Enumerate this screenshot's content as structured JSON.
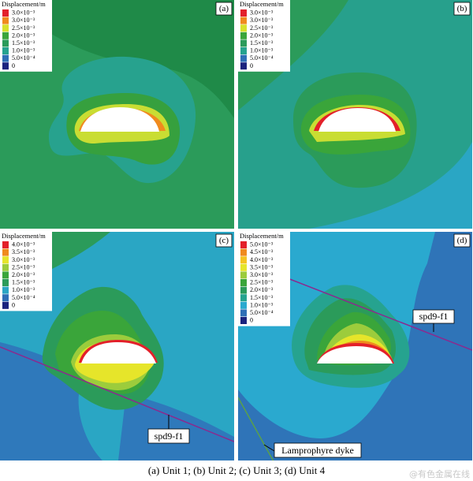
{
  "panels": [
    {
      "label": "(a)",
      "legend_title": "Displacement/m",
      "legend": [
        {
          "label": "3.0×10⁻³",
          "color": "#e3202a"
        },
        {
          "label": "3.0×10⁻³",
          "color": "#f08a1e"
        },
        {
          "label": "2.5×10⁻³",
          "color": "#d8e12b"
        },
        {
          "label": "2.0×10⁻³",
          "color": "#3aa53a"
        },
        {
          "label": "1.5×10⁻³",
          "color": "#2b9b5a"
        },
        {
          "label": "1.0×10⁻³",
          "color": "#26a38f"
        },
        {
          "label": "5.0×10⁻⁴",
          "color": "#2f6fb6"
        },
        {
          "label": "0",
          "color": "#1a237e"
        }
      ]
    },
    {
      "label": "(b)",
      "legend_title": "Displacement/m",
      "legend": [
        {
          "label": "3.0×10⁻³",
          "color": "#e3202a"
        },
        {
          "label": "3.0×10⁻³",
          "color": "#f08a1e"
        },
        {
          "label": "2.5×10⁻³",
          "color": "#d8e12b"
        },
        {
          "label": "2.0×10⁻³",
          "color": "#3aa53a"
        },
        {
          "label": "1.5×10⁻³",
          "color": "#2b9b5a"
        },
        {
          "label": "1.0×10⁻³",
          "color": "#26a38f"
        },
        {
          "label": "5.0×10⁻⁴",
          "color": "#2f6fb6"
        },
        {
          "label": "0",
          "color": "#1a237e"
        }
      ]
    },
    {
      "label": "(c)",
      "legend_title": "Displacement/m",
      "legend": [
        {
          "label": "4.0×10⁻³",
          "color": "#e3202a"
        },
        {
          "label": "3.5×10⁻³",
          "color": "#f08a1e"
        },
        {
          "label": "3.0×10⁻³",
          "color": "#e6e52a"
        },
        {
          "label": "2.5×10⁻³",
          "color": "#9ccc3c"
        },
        {
          "label": "2.0×10⁻³",
          "color": "#3aa53a"
        },
        {
          "label": "1.5×10⁻³",
          "color": "#2b9b5a"
        },
        {
          "label": "1.0×10⁻³",
          "color": "#2aa6c4"
        },
        {
          "label": "5.0×10⁻⁴",
          "color": "#2f6fb6"
        },
        {
          "label": "0",
          "color": "#1a237e"
        }
      ]
    },
    {
      "label": "(d)",
      "legend_title": "Displacement/m",
      "legend": [
        {
          "label": "5.0×10⁻³",
          "color": "#e3202a"
        },
        {
          "label": "4.5×10⁻³",
          "color": "#f08a1e"
        },
        {
          "label": "4.0×10⁻³",
          "color": "#f5c320"
        },
        {
          "label": "3.5×10⁻³",
          "color": "#e6e52a"
        },
        {
          "label": "3.0×10⁻³",
          "color": "#9ccc3c"
        },
        {
          "label": "2.5×10⁻³",
          "color": "#3aa53a"
        },
        {
          "label": "2.0×10⁻³",
          "color": "#2b9b5a"
        },
        {
          "label": "1.5×10⁻³",
          "color": "#26a38f"
        },
        {
          "label": "1.0×10⁻³",
          "color": "#2aa9cf"
        },
        {
          "label": "5.0×10⁻⁴",
          "color": "#2f6fb6"
        },
        {
          "label": "0",
          "color": "#1a237e"
        }
      ]
    }
  ],
  "annotations": {
    "c_fault": "spd9-f1",
    "d_fault": "spd9-f1",
    "d_dyke": "Lamprophyre dyke"
  },
  "caption": "(a) Unit 1; (b) Unit 2; (c) Unit 3; (d) Unit 4",
  "watermark": "@有色金属在线"
}
